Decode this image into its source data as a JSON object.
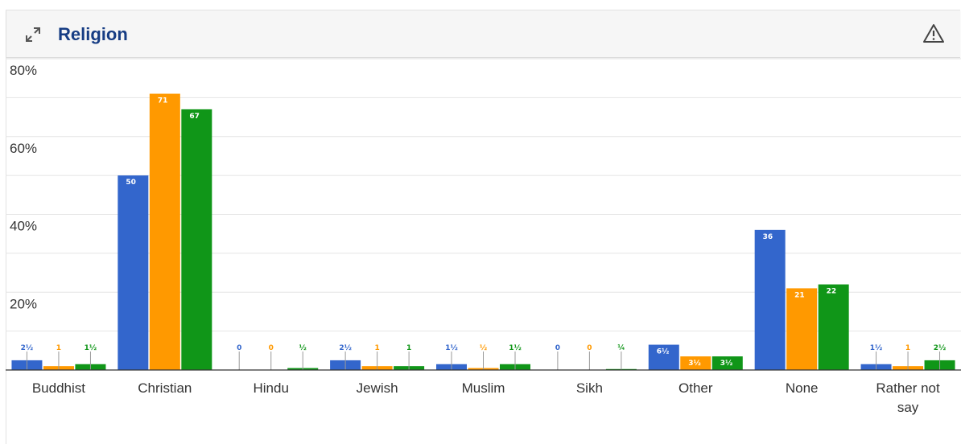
{
  "header": {
    "title": "Religion",
    "expand_icon": "expand-icon",
    "warning_icon": "warning-triangle-icon"
  },
  "chart_data": {
    "type": "bar",
    "title": "Religion",
    "xlabel": "",
    "ylabel": "",
    "ylim": [
      0,
      80
    ],
    "y_ticks": [
      "80%",
      "60%",
      "40%",
      "20%"
    ],
    "grid": true,
    "legend": "none",
    "categories": [
      "Buddhist",
      "Christian",
      "Hindu",
      "Jewish",
      "Muslim",
      "Sikh",
      "Other",
      "None",
      "Rather not say"
    ],
    "series": [
      {
        "color": "#3366cc",
        "values": [
          2.5,
          50,
          0,
          2.5,
          1.5,
          0,
          6.5,
          36,
          1.5
        ],
        "labels": [
          "2½",
          "50",
          "0",
          "2½",
          "1½",
          "0",
          "6½",
          "36",
          "1½"
        ]
      },
      {
        "color": "#ff9900",
        "values": [
          1,
          71,
          0,
          1,
          0.5,
          0,
          3.5,
          21,
          1
        ],
        "labels": [
          "1",
          "71",
          "0",
          "1",
          "½",
          "0",
          "3½",
          "21",
          "1"
        ]
      },
      {
        "color": "#109618",
        "values": [
          1.5,
          67,
          0.5,
          1,
          1.5,
          0.25,
          3.5,
          22,
          2.5
        ],
        "labels": [
          "1½",
          "67",
          "½",
          "1",
          "1½",
          "¼",
          "3½",
          "22",
          "2½"
        ]
      }
    ]
  }
}
